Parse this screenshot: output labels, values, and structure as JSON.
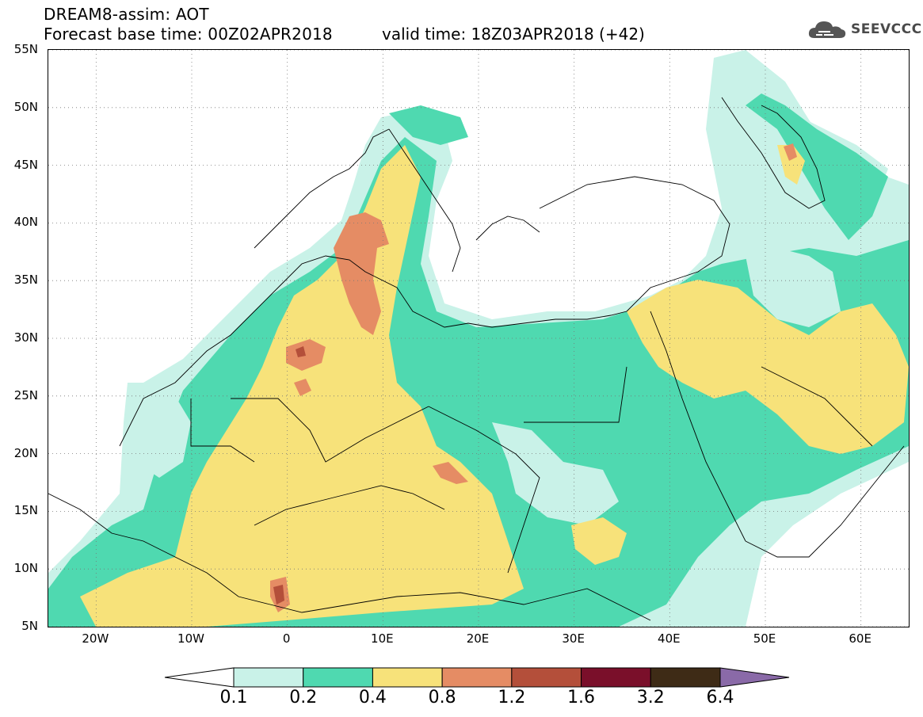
{
  "header": {
    "title_line1": "DREAM8-assim: AOT",
    "base_time": "Forecast base time: 00Z02APR2018",
    "valid_time": "valid time: 18Z03APR2018 (+42)"
  },
  "logo": {
    "text": "SEEVCCC",
    "icon": "cloud-icon"
  },
  "map": {
    "lat_ticks": [
      "55N",
      "50N",
      "45N",
      "40N",
      "35N",
      "30N",
      "25N",
      "20N",
      "15N",
      "10N",
      "5N"
    ],
    "lon_ticks": [
      "20W",
      "10W",
      "0",
      "10E",
      "20E",
      "30E",
      "40E",
      "50E",
      "60E"
    ],
    "lat_range": [
      5,
      55
    ],
    "lon_range": [
      -25,
      65
    ],
    "graticule": "dotted",
    "variable": "Aerosol Optical Thickness (AOT)"
  },
  "colorbar": {
    "levels": [
      "0.1",
      "0.2",
      "0.4",
      "0.8",
      "1.2",
      "1.6",
      "3.2",
      "6.4"
    ],
    "colors": [
      "#ffffff",
      "#c9f2e8",
      "#4fd9b0",
      "#f7e27a",
      "#e58c64",
      "#b44f3a",
      "#7a0f2a",
      "#3e2b16",
      "#8a6aa8"
    ]
  }
}
